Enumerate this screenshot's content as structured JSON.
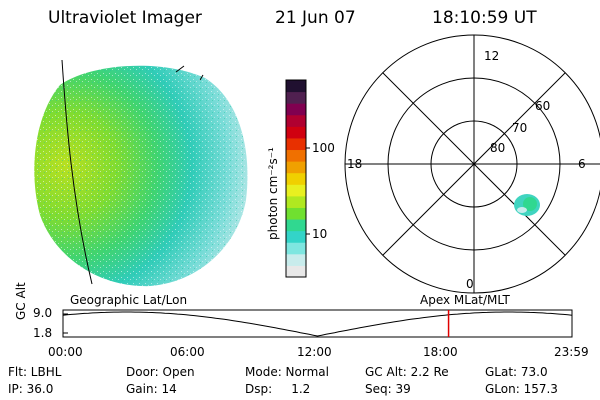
{
  "header": {
    "instrument": "Ultraviolet Imager",
    "date": "21 Jun 07",
    "time": "18:10:59 UT"
  },
  "colorbar": {
    "unit_label": "photon cm⁻²s⁻¹",
    "tick_labels": [
      "100",
      "10"
    ],
    "colors": [
      "#e8e8e8",
      "#c8ecec",
      "#7ee6e0",
      "#33d4c8",
      "#30d890",
      "#70e030",
      "#b0e820",
      "#e8f020",
      "#f0d000",
      "#f0a000",
      "#f07000",
      "#e83000",
      "#d00010",
      "#b00030",
      "#800050",
      "#502050",
      "#201030"
    ]
  },
  "polar_plot": {
    "hour_labels": {
      "top": "12",
      "left": "18",
      "right": "6",
      "bottom": "0"
    },
    "lat_labels": [
      "60",
      "70",
      "80"
    ]
  },
  "orbit_panel": {
    "left_title": "Geographic Lat/Lon",
    "right_title": "Apex  MLat/MLT",
    "y_axis_label": "GC Alt",
    "y_ticks": [
      "9.0",
      "1.8"
    ],
    "x_ticks": [
      "00:00",
      "06:00",
      "12:00",
      "18:00",
      "23:59"
    ],
    "current_time_hours": 18.18
  },
  "info": {
    "flt": "Flt: LBHL",
    "door": "Door: Open",
    "mode": "Mode: Normal",
    "gc_alt": "GC Alt: 2.2 Re",
    "glat": "GLat:  73.0",
    "ip": "IP: 36.0",
    "gain": "Gain: 14",
    "dsp": "Dsp:     1.2",
    "seq": "Seq: 39",
    "glon": "GLon: 157.3"
  }
}
